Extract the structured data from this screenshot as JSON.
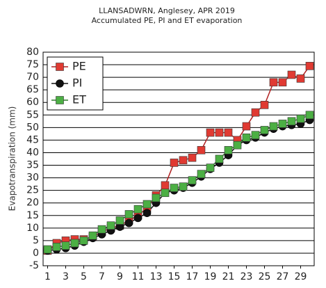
{
  "chart_data": {
    "type": "line",
    "title": "LLANSADWRN, Anglesey, APR 2019",
    "subtitle": "Accumulated PE, PI and ET evaporation",
    "y_label": "Evapotranspiration (mm)",
    "x": [
      1,
      2,
      3,
      4,
      5,
      6,
      7,
      8,
      9,
      10,
      11,
      12,
      13,
      14,
      15,
      16,
      17,
      18,
      19,
      20,
      21,
      22,
      23,
      24,
      25,
      26,
      27,
      28,
      29,
      30
    ],
    "xlim": [
      0.5,
      30.5
    ],
    "xticks": [
      1,
      3,
      5,
      7,
      9,
      11,
      13,
      15,
      17,
      19,
      21,
      23,
      25,
      27,
      29
    ],
    "ylim": [
      -5,
      80
    ],
    "yticks": [
      -5,
      0,
      5,
      10,
      15,
      20,
      25,
      30,
      35,
      40,
      45,
      50,
      55,
      60,
      65,
      70,
      75,
      80
    ],
    "grid": true,
    "legend": "upper left",
    "series": [
      {
        "name": "PE",
        "color": "#e03a32",
        "line_color": "#b02020",
        "marker": "square",
        "values": [
          1,
          4,
          5,
          5.5,
          5.5,
          6.5,
          8.5,
          10,
          11,
          13,
          15,
          18,
          23,
          27,
          36,
          37,
          38,
          41,
          48,
          48,
          48,
          45,
          50.5,
          56,
          59,
          68,
          68,
          71,
          69.5,
          74.5
        ]
      },
      {
        "name": "PI",
        "color": "#111111",
        "line_color": "#111111",
        "marker": "circle",
        "values": [
          1,
          1.5,
          2,
          3,
          4.5,
          6,
          7.5,
          9,
          10.5,
          12,
          14,
          16,
          20,
          24,
          25,
          26,
          28,
          30.5,
          33.5,
          36,
          39,
          43,
          45,
          46,
          48,
          49.5,
          50.5,
          51,
          51.5,
          53
        ]
      },
      {
        "name": "ET",
        "color": "#4caf44",
        "line_color": "#2e7d2a",
        "marker": "square",
        "values": [
          1.5,
          2.5,
          3,
          4,
          5,
          7,
          9.5,
          11,
          13,
          15.5,
          17.5,
          19.5,
          22,
          24,
          26,
          26.5,
          29,
          31.5,
          34,
          37.5,
          41,
          43,
          46,
          47,
          49,
          50.5,
          51.5,
          52.5,
          53.5,
          55
        ]
      }
    ]
  }
}
